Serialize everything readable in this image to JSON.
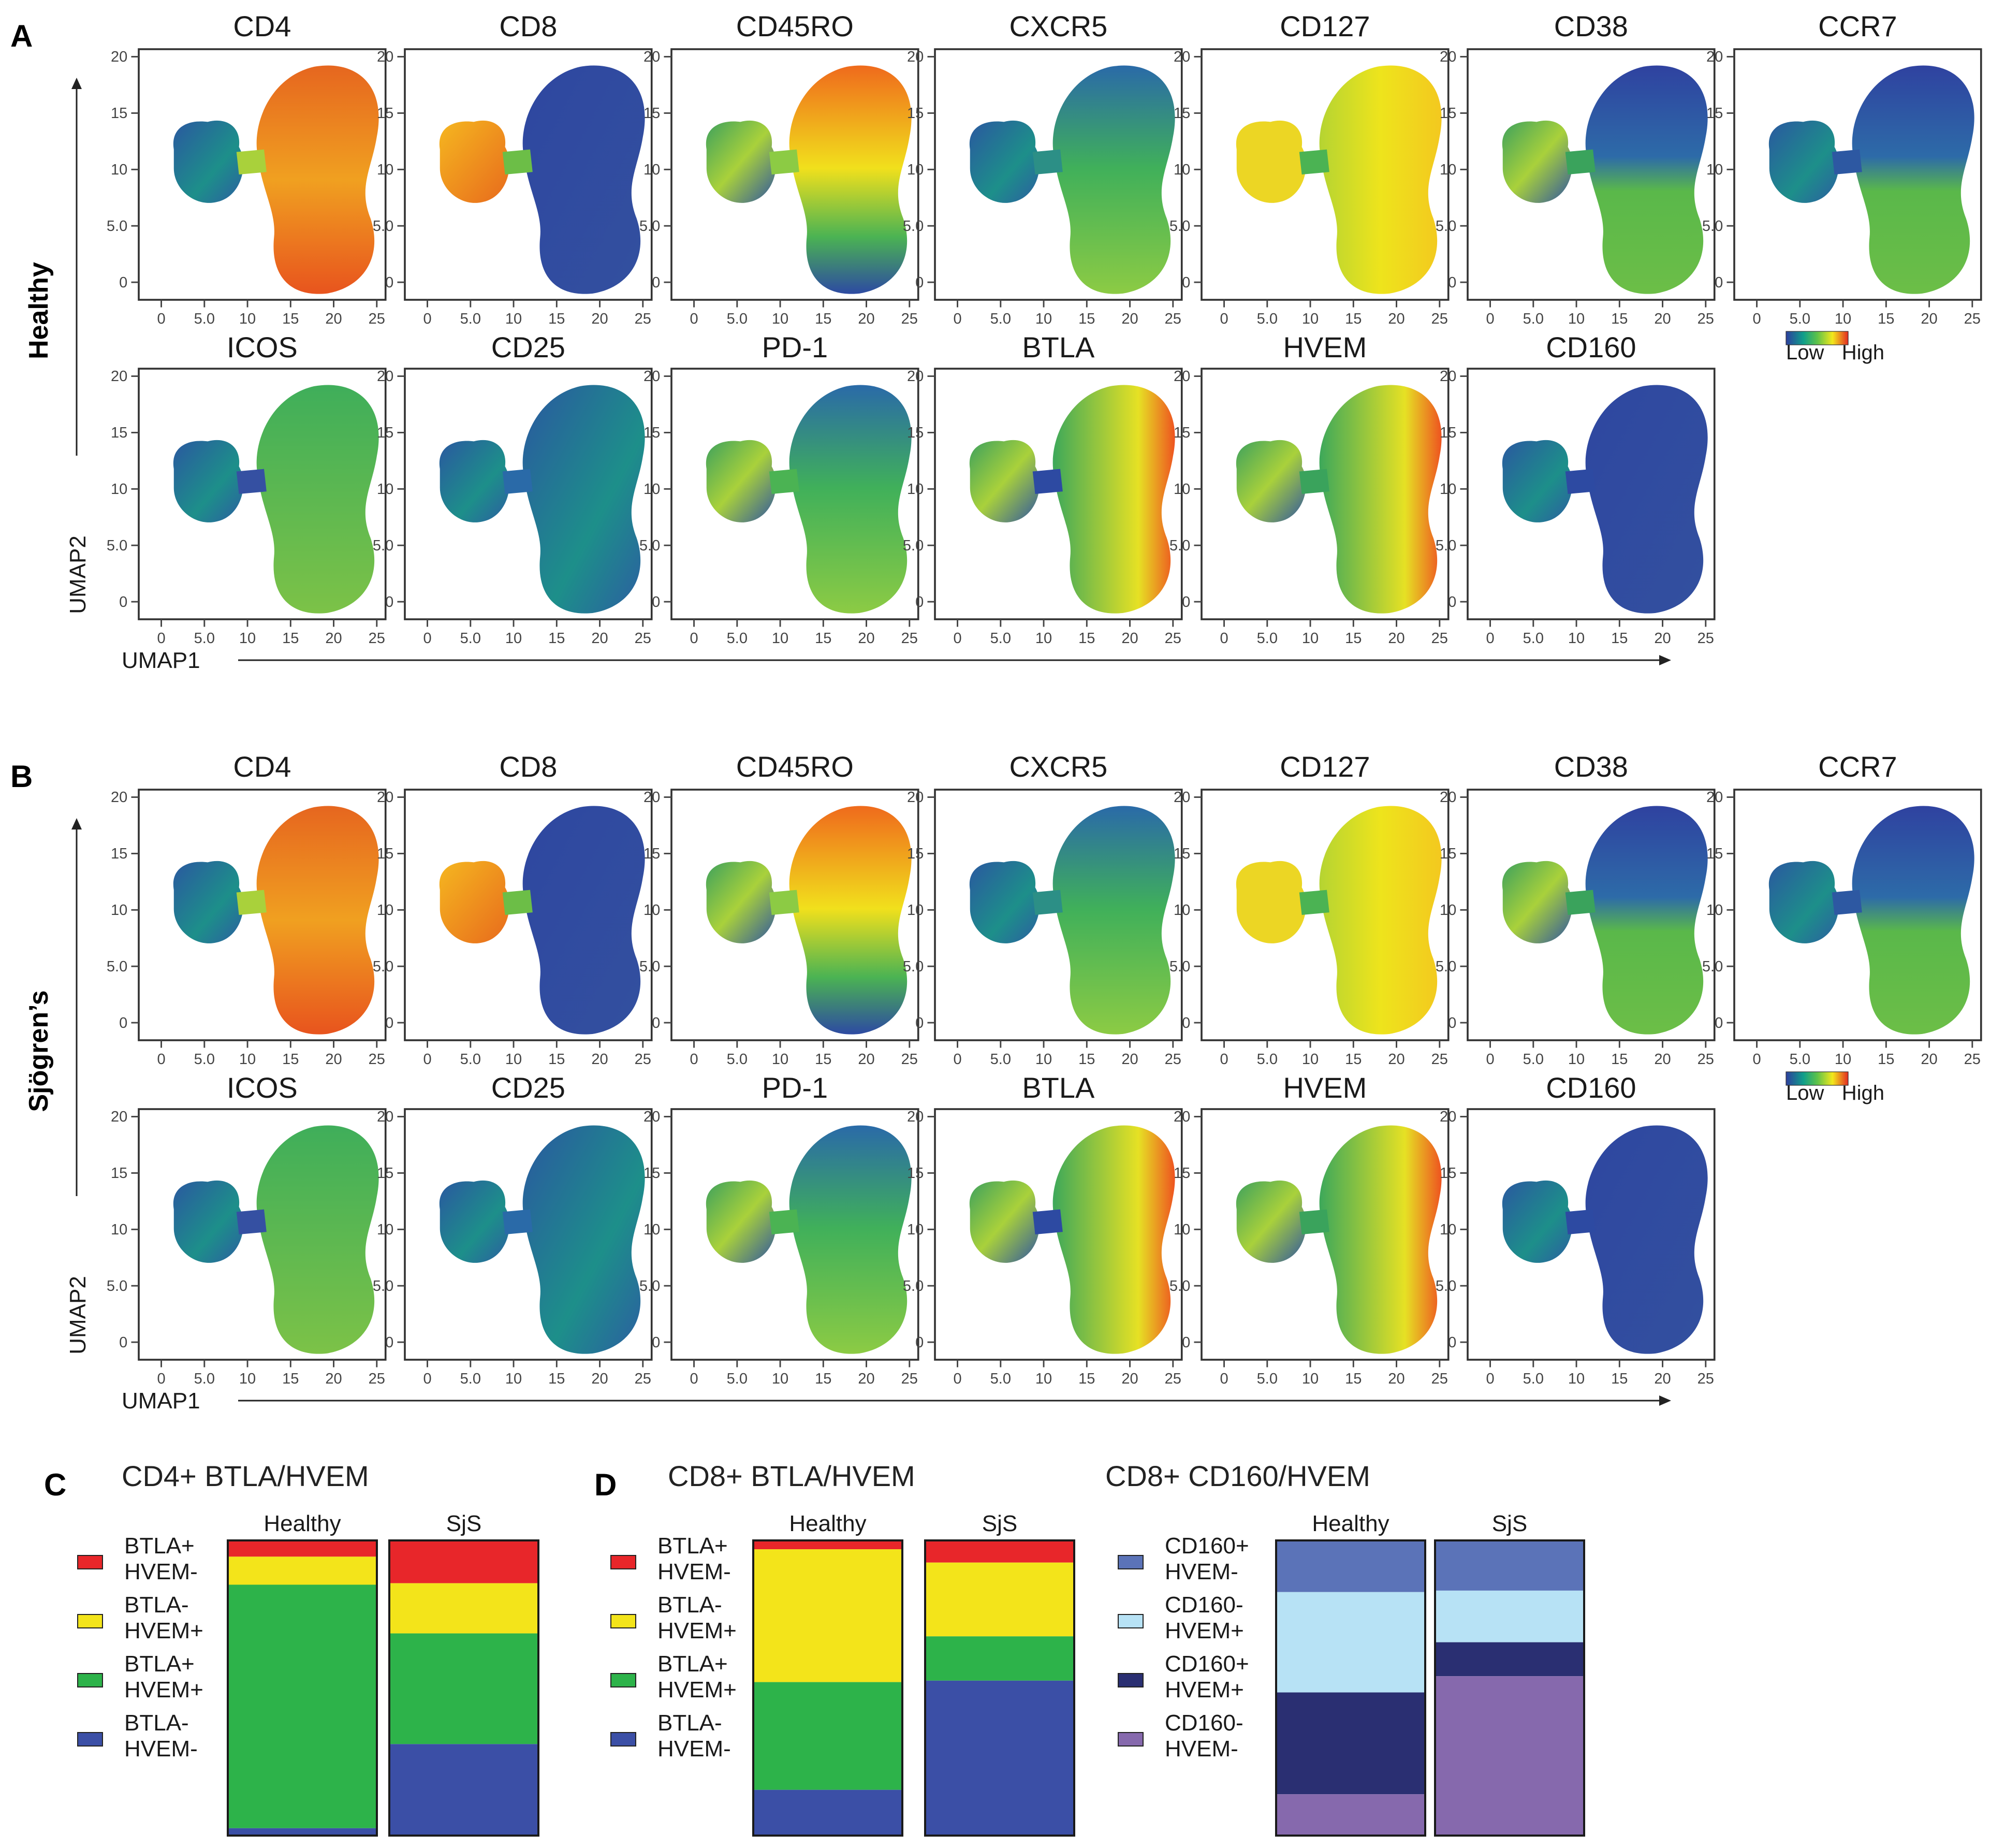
{
  "colors": {
    "blue": "#3b4fa6",
    "green": "#2db34a",
    "yellow": "#f3e41a",
    "red": "#e8262a",
    "cd160pos_hvemneg": "#5b73b8",
    "cd160neg_hvempos": "#b7e2f5",
    "cd160pos_hvempos": "#2a2f72",
    "cd160neg_hvemneg": "#8669ad"
  },
  "umap": {
    "markers_row1": [
      "CD4",
      "CD8",
      "CD45RO",
      "CXCR5",
      "CD127",
      "CD38",
      "CCR7"
    ],
    "markers_row2": [
      "ICOS",
      "CD25",
      "PD-1",
      "BTLA",
      "HVEM",
      "CD160"
    ],
    "x_ticks": [
      "0",
      "5.0",
      "10",
      "15",
      "20",
      "25"
    ],
    "y_ticks": [
      "0",
      "5.0",
      "10",
      "15",
      "20"
    ],
    "x_axis_label": "UMAP1",
    "y_axis_label": "UMAP2",
    "colorbar_low": "Low",
    "colorbar_high": "High",
    "panels": [
      {
        "letter": "A",
        "group": "Healthy"
      },
      {
        "letter": "B",
        "group": "Sjögren’s"
      }
    ]
  },
  "chart_data": [
    {
      "type": "stacked-bar",
      "letter": "C",
      "title": "CD4+ BTLA/HVEM",
      "categories": [
        "Healthy",
        "SjS"
      ],
      "series": [
        {
          "name": [
            "BTLA+",
            "HVEM-"
          ],
          "color": "#e8262a",
          "values": [
            5.5,
            14.5
          ]
        },
        {
          "name": [
            "BTLA-",
            "HVEM+"
          ],
          "color": "#f3e41a",
          "values": [
            9.5,
            17
          ]
        },
        {
          "name": [
            "BTLA+",
            "HVEM+"
          ],
          "color": "#2db34a",
          "values": [
            82.5,
            37.5
          ]
        },
        {
          "name": [
            "BTLA-",
            "HVEM-"
          ],
          "color": "#3b4fa6",
          "values": [
            2.5,
            31
          ]
        }
      ],
      "unit": "percent"
    },
    {
      "type": "stacked-bar",
      "letter": "D",
      "title": "CD8+ BTLA/HVEM",
      "categories": [
        "Healthy",
        "SjS"
      ],
      "series": [
        {
          "name": [
            "BTLA+",
            "HVEM-"
          ],
          "color": "#e8262a",
          "values": [
            3,
            7.5
          ]
        },
        {
          "name": [
            "BTLA-",
            "HVEM+"
          ],
          "color": "#f3e41a",
          "values": [
            45,
            25
          ]
        },
        {
          "name": [
            "BTLA+",
            "HVEM+"
          ],
          "color": "#2db34a",
          "values": [
            36.5,
            15
          ]
        },
        {
          "name": [
            "BTLA-",
            "HVEM-"
          ],
          "color": "#3b4fa6",
          "values": [
            15.5,
            52.5
          ]
        }
      ],
      "unit": "percent"
    },
    {
      "type": "stacked-bar",
      "letter": "",
      "title": "CD8+ CD160/HVEM",
      "categories": [
        "Healthy",
        "SjS"
      ],
      "series": [
        {
          "name": [
            "CD160+",
            "HVEM-"
          ],
          "color": "#5b73b8",
          "values": [
            17.5,
            17
          ]
        },
        {
          "name": [
            "CD160-",
            "HVEM+"
          ],
          "color": "#b7e2f5",
          "values": [
            34,
            17.5
          ]
        },
        {
          "name": [
            "CD160+",
            "HVEM+"
          ],
          "color": "#2a2f72",
          "values": [
            34.5,
            11.5
          ]
        },
        {
          "name": [
            "CD160-",
            "HVEM-"
          ],
          "color": "#8669ad",
          "values": [
            14,
            54
          ]
        }
      ],
      "unit": "percent"
    }
  ]
}
